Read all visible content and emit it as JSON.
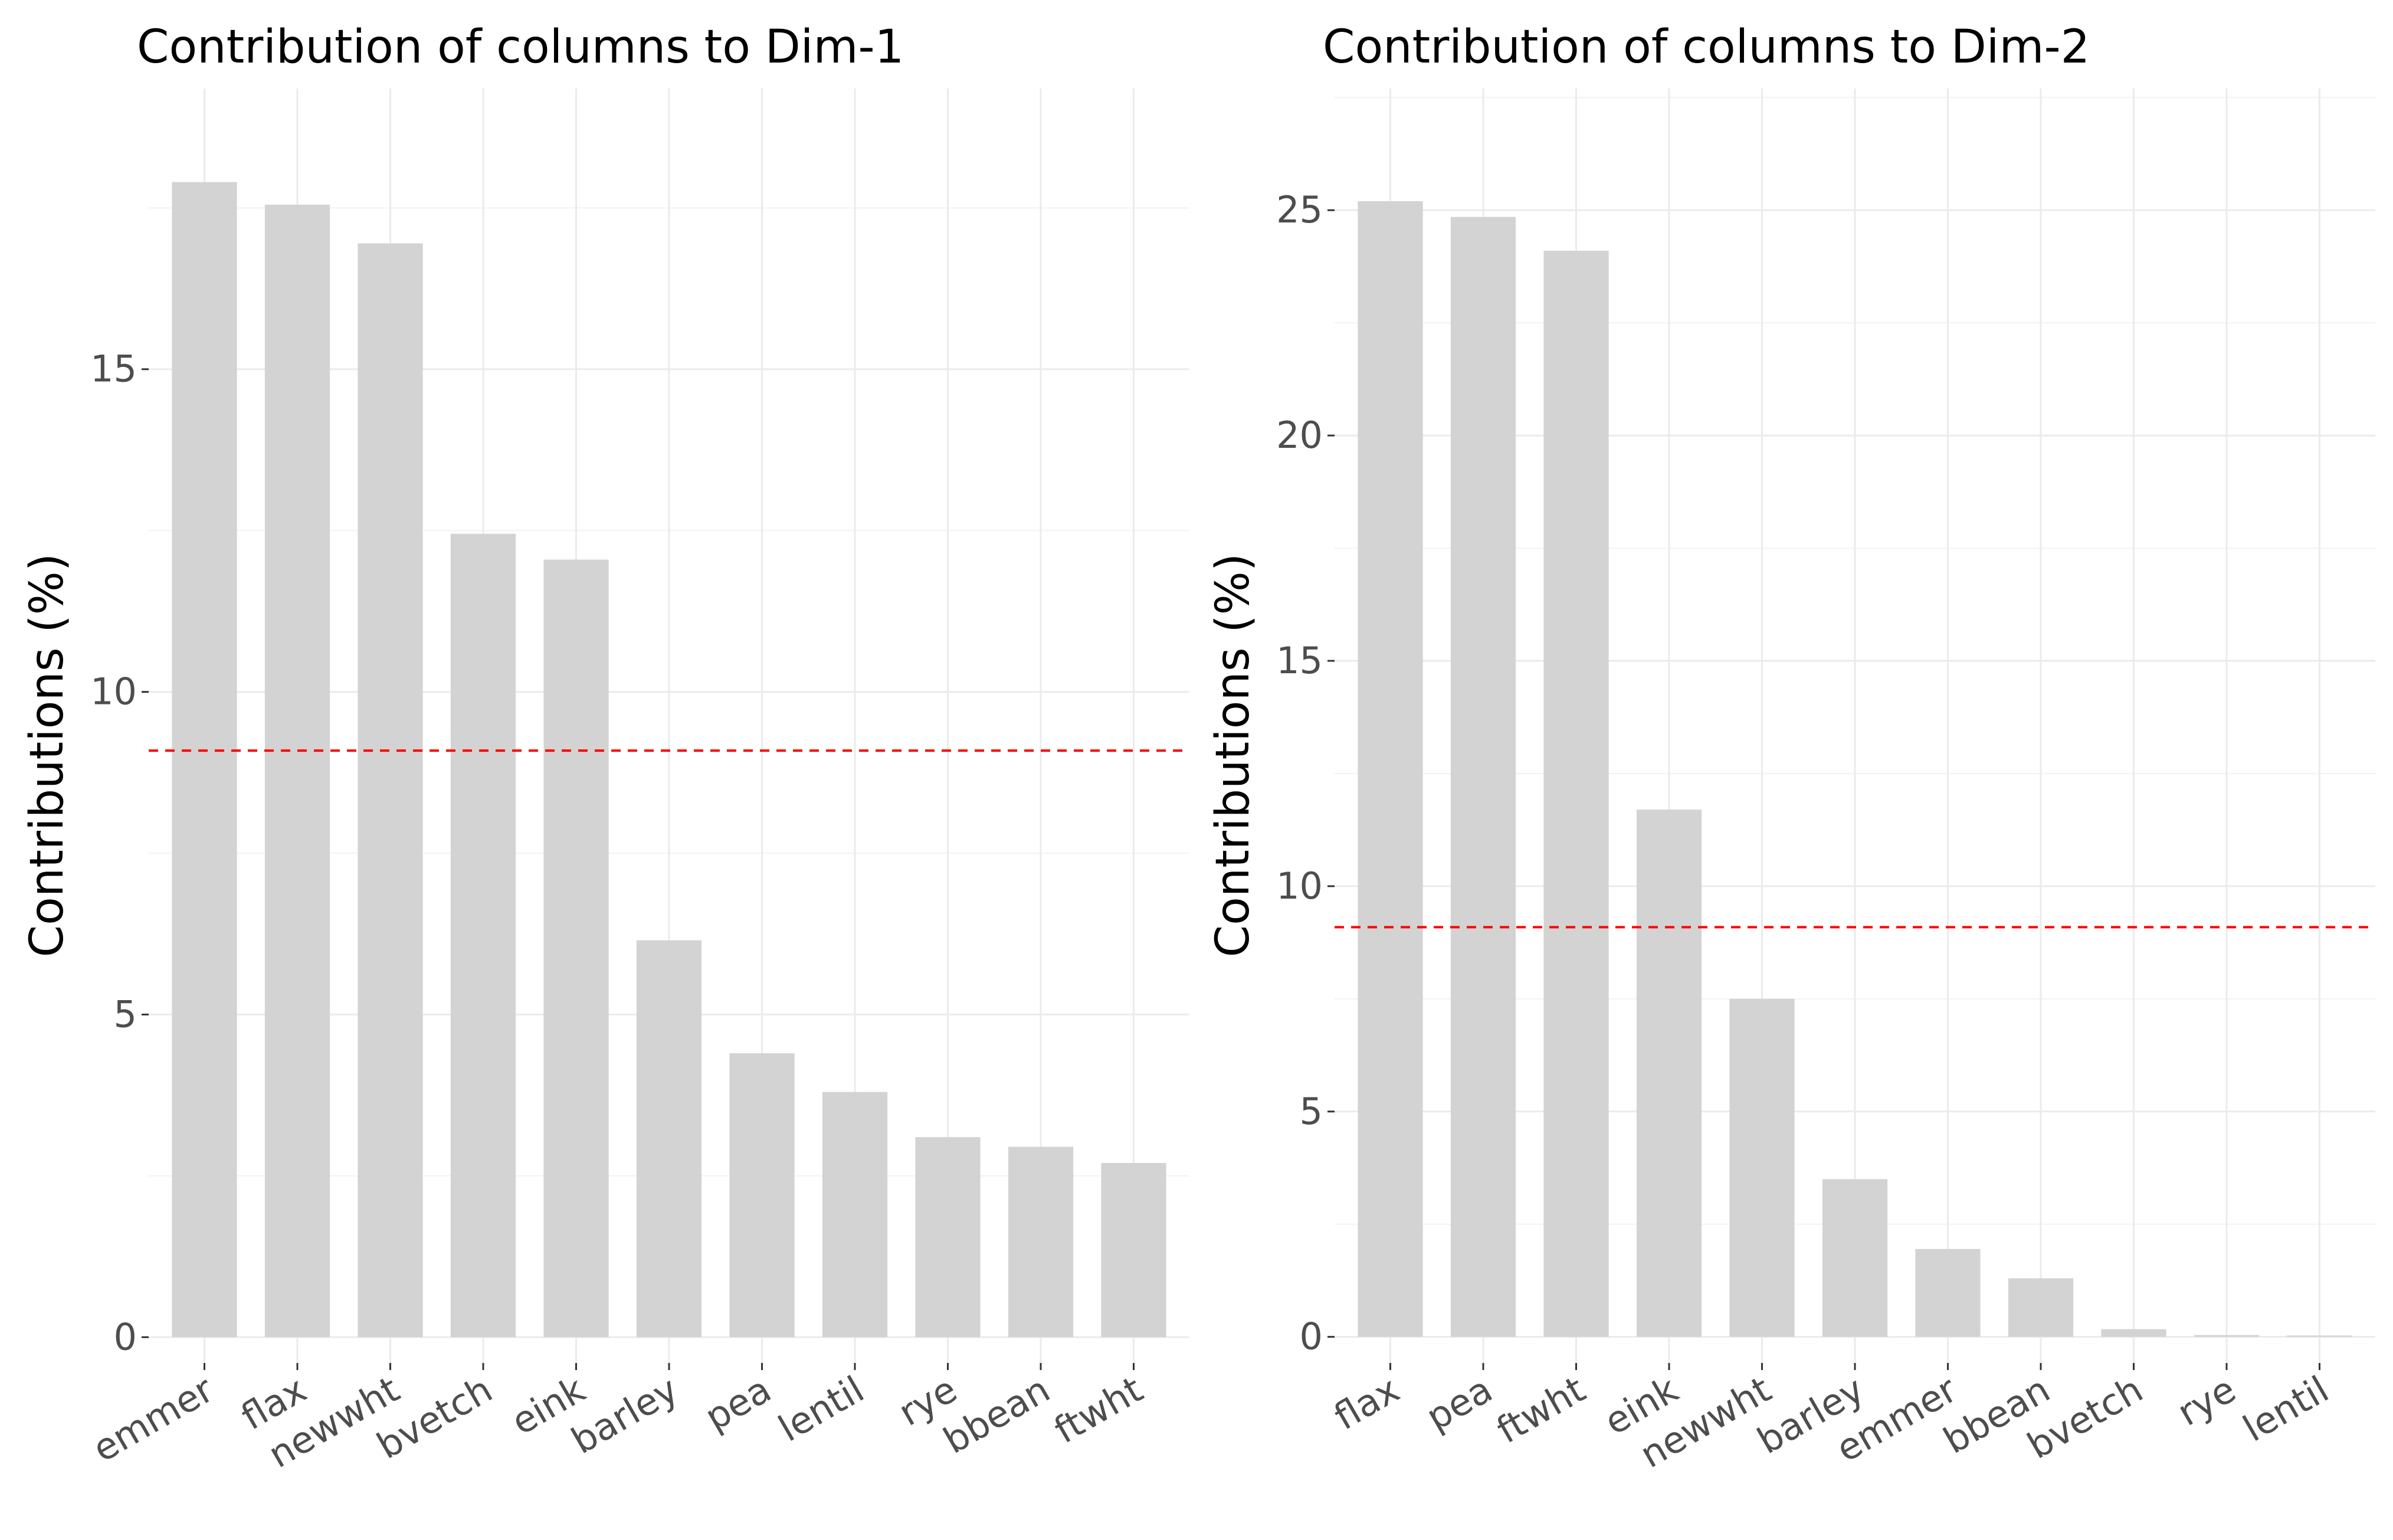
{
  "chart_data": [
    {
      "type": "bar",
      "title": "Contribution of columns to Dim-1",
      "xlabel": "",
      "ylabel": "Contributions (%)",
      "categories": [
        "emmer",
        "flax",
        "newwht",
        "bvetch",
        "eink",
        "barley",
        "pea",
        "lentil",
        "rye",
        "bbean",
        "ftwht"
      ],
      "values": [
        17.9,
        17.55,
        16.95,
        12.45,
        12.05,
        6.15,
        4.4,
        3.8,
        3.1,
        2.95,
        2.7
      ],
      "yticks": [
        0,
        5,
        10,
        15
      ],
      "ytick_labels": [
        "0",
        "5",
        "10",
        "15"
      ],
      "ylim": [
        -0.4,
        19.35
      ],
      "reference_line": 9.09,
      "bar_color": "#d3d3d3",
      "reference_color": "#ff0000",
      "grid": true
    },
    {
      "type": "bar",
      "title": "Contribution of columns to Dim-2",
      "xlabel": "",
      "ylabel": "Contributions (%)",
      "categories": [
        "flax",
        "pea",
        "ftwht",
        "eink",
        "newwht",
        "barley",
        "emmer",
        "bbean",
        "bvetch",
        "rye",
        "lentil"
      ],
      "values": [
        25.2,
        24.85,
        24.1,
        11.7,
        7.5,
        3.5,
        1.95,
        1.3,
        0.17,
        0.04,
        0.03
      ],
      "yticks": [
        0,
        5,
        10,
        15,
        20,
        25
      ],
      "ytick_labels": [
        "0",
        "5",
        "10",
        "15",
        "20",
        "25"
      ],
      "ylim": [
        -0.58,
        27.7
      ],
      "reference_line": 9.09,
      "bar_color": "#d3d3d3",
      "reference_color": "#ff0000",
      "grid": true
    }
  ]
}
